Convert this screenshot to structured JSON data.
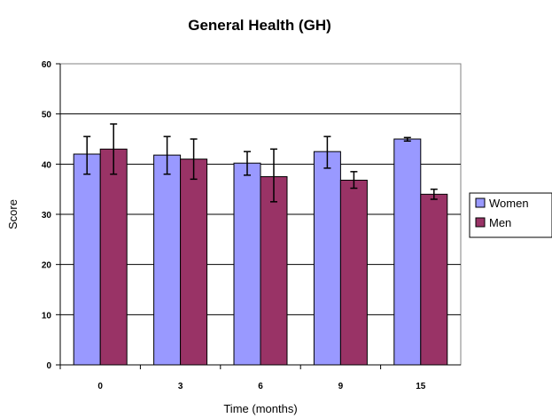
{
  "chart_data": {
    "type": "bar",
    "title": "General Health (GH)",
    "xlabel": "Time (months)",
    "ylabel": "Score",
    "categories": [
      "0",
      "3",
      "6",
      "9",
      "15"
    ],
    "ylim": [
      0,
      60
    ],
    "yticks": [
      0,
      10,
      20,
      30,
      40,
      50,
      60
    ],
    "grid": true,
    "legend_position": "right",
    "series": [
      {
        "name": "Women",
        "color": "#9999ff",
        "values": [
          42,
          41.8,
          40.2,
          42.5,
          45
        ],
        "error_low": [
          38,
          38,
          37.8,
          39.2,
          44.6
        ],
        "error_high": [
          45.5,
          45.5,
          42.5,
          45.5,
          45.3
        ]
      },
      {
        "name": "Men",
        "color": "#993366",
        "values": [
          43,
          41,
          37.5,
          36.8,
          34
        ],
        "error_low": [
          38,
          37,
          32.5,
          35.2,
          33
        ],
        "error_high": [
          48,
          45,
          43,
          38.5,
          35
        ]
      }
    ]
  }
}
